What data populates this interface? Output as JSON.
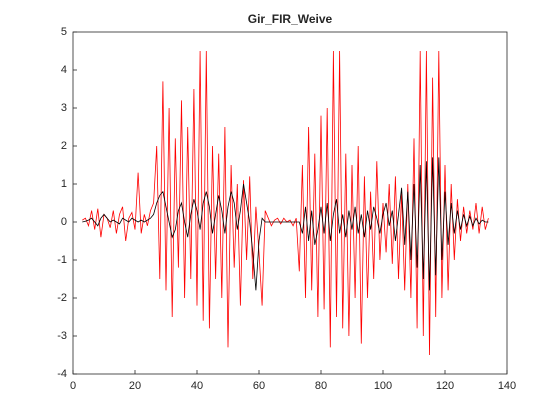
{
  "chart_data": {
    "type": "line",
    "title": "Gir_FIR_Weive",
    "x": [
      3,
      4,
      5,
      6,
      7,
      8,
      9,
      10,
      11,
      12,
      13,
      14,
      15,
      16,
      17,
      18,
      19,
      20,
      21,
      22,
      23,
      24,
      25,
      26,
      27,
      28,
      29,
      30,
      31,
      32,
      33,
      34,
      35,
      36,
      37,
      38,
      39,
      40,
      41,
      42,
      43,
      44,
      45,
      46,
      47,
      48,
      49,
      50,
      51,
      52,
      53,
      54,
      55,
      56,
      57,
      58,
      59,
      60,
      61,
      62,
      63,
      64,
      65,
      66,
      67,
      68,
      69,
      70,
      71,
      72,
      73,
      74,
      75,
      76,
      77,
      78,
      79,
      80,
      81,
      82,
      83,
      84,
      85,
      86,
      87,
      88,
      89,
      90,
      91,
      92,
      93,
      94,
      95,
      96,
      97,
      98,
      99,
      100,
      101,
      102,
      103,
      104,
      105,
      106,
      107,
      108,
      109,
      110,
      111,
      112,
      113,
      114,
      115,
      116,
      117,
      118,
      119,
      120,
      121,
      122,
      123,
      124,
      125,
      126,
      127,
      128,
      129,
      130,
      131,
      132,
      133,
      134
    ],
    "series": [
      {
        "color": "#ff0000",
        "values": [
          0.05,
          0.1,
          -0.1,
          0.3,
          -0.2,
          0.35,
          -0.4,
          0.2,
          0.1,
          -0.15,
          0.3,
          -0.3,
          0.2,
          0.4,
          -0.5,
          0.1,
          0.25,
          -0.2,
          1.3,
          -0.3,
          0.2,
          -0.1,
          0.3,
          0.5,
          2.0,
          -1.5,
          3.7,
          -1.8,
          3.0,
          -2.5,
          2.2,
          -1.2,
          3.2,
          -2.0,
          2.5,
          -1.5,
          3.5,
          -2.2,
          4.5,
          -2.6,
          4.5,
          -2.8,
          2.0,
          -1.5,
          1.8,
          -2.0,
          2.5,
          -3.3,
          1.5,
          -1.2,
          1.0,
          -2.2,
          1.1,
          -1.0,
          1.2,
          -1.5,
          0.4,
          -0.8,
          -2.2,
          0.3,
          0.1,
          -0.1,
          0.05,
          0.1,
          -0.05,
          0.1,
          0.0,
          0.05,
          -0.1,
          0.1,
          -1.3,
          1.5,
          -2.0,
          2.5,
          -1.8,
          1.8,
          -2.5,
          2.8,
          -2.3,
          3.0,
          -3.3,
          4.5,
          -2.5,
          4.5,
          -2.8,
          1.8,
          -3.0,
          1.5,
          -2.0,
          2.0,
          -3.2,
          1.2,
          -2.0,
          0.8,
          -1.5,
          1.6,
          -1.0,
          0.5,
          -0.8,
          1.0,
          -1.1,
          1.2,
          -1.5,
          0.8,
          -1.8,
          1.0,
          -2.0,
          2.2,
          -2.8,
          4.5,
          -3.0,
          4.5,
          -3.5,
          3.8,
          -2.5,
          4.5,
          -2.0,
          1.5,
          -1.8,
          1.0,
          -1.0,
          0.6,
          -0.5,
          0.4,
          -0.3,
          0.3,
          -0.2,
          0.5,
          -0.3,
          0.4,
          -0.2,
          0.1
        ]
      },
      {
        "color": "#000000",
        "values": [
          0,
          0.02,
          0.05,
          0.1,
          0.0,
          -0.1,
          0.1,
          0.2,
          0.1,
          0,
          0.05,
          0,
          -0.05,
          0.1,
          0.05,
          0,
          0.1,
          0.05,
          0,
          0.05,
          0,
          0.05,
          0.1,
          0.2,
          0.5,
          0.7,
          0.8,
          0.4,
          0,
          -0.4,
          -0.2,
          0.3,
          0.5,
          0,
          -0.4,
          0.2,
          0.6,
          0.3,
          -0.2,
          0.5,
          0.8,
          0.4,
          -0.3,
          0.2,
          0.7,
          0.3,
          -0.3,
          0.4,
          0.8,
          0.5,
          -0.2,
          0.3,
          1.0,
          0.5,
          0,
          -0.8,
          -1.8,
          -0.5,
          0.1,
          0,
          0,
          0,
          0,
          0,
          0,
          0,
          0,
          0,
          0,
          0,
          0,
          -0.3,
          0.4,
          -0.5,
          0.3,
          -0.6,
          -0.2,
          0.4,
          -0.3,
          0.5,
          -0.5,
          0.2,
          0.6,
          -0.3,
          0.2,
          -0.4,
          0.3,
          -0.2,
          0.4,
          -0.3,
          0.2,
          -0.4,
          0.3,
          -0.2,
          0.4,
          0.1,
          -0.3,
          0.2,
          0.5,
          -0.1,
          0.3,
          -0.5,
          0.2,
          0.9,
          -0.6,
          0.8,
          -1.0,
          1.0,
          -1.2,
          1.5,
          -1.5,
          1.6,
          -1.8,
          1.7,
          -1.4,
          1.7,
          -1.0,
          0.8,
          -0.6,
          0.5,
          -0.3,
          0.3,
          -0.2,
          0.2,
          -0.1,
          0.15,
          -0.1,
          0.1,
          -0.05,
          0.05,
          0,
          0
        ]
      }
    ],
    "xlim": [
      0,
      140
    ],
    "xticks": [
      0,
      20,
      40,
      60,
      80,
      100,
      120,
      140
    ],
    "ylim": [
      -4,
      5
    ],
    "yticks": [
      -4,
      -3,
      -2,
      -1,
      0,
      1,
      2,
      3,
      4,
      5
    ]
  }
}
